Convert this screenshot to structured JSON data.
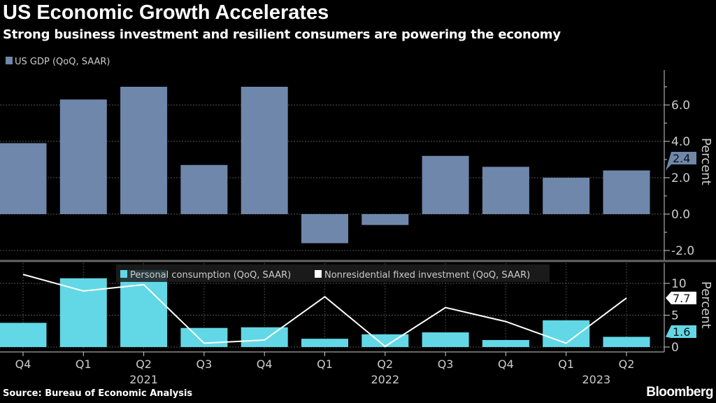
{
  "header": {
    "title": "US Economic Growth Accelerates",
    "subtitle": "Strong business investment and resilient consumers are powering the economy"
  },
  "footer": {
    "source": "Source: Bureau of Economic Analysis",
    "logo": "Bloomberg"
  },
  "colors": {
    "gdp": "#6f87aa",
    "consumption": "#62d8e6",
    "investment": "#ffffff",
    "background": "#000000"
  },
  "chart_data": [
    {
      "type": "bar",
      "legend": [
        "US GDP (QoQ, SAAR)"
      ],
      "legend_placement": "top-left",
      "categories": [
        "Q4 2020",
        "Q1 2021",
        "Q2 2021",
        "Q3 2021",
        "Q4 2021",
        "Q1 2022",
        "Q2 2022",
        "Q3 2022",
        "Q4 2022",
        "Q1 2023",
        "Q2 2023"
      ],
      "series": [
        {
          "name": "US GDP (QoQ, SAAR)",
          "values": [
            3.9,
            6.3,
            7.0,
            2.7,
            7.0,
            -1.6,
            -0.6,
            3.2,
            2.6,
            2.0,
            2.4
          ]
        }
      ],
      "ylabel": "Percent",
      "yticks": [
        "-2.0",
        "0.0",
        "2.0",
        "4.0",
        "6.0"
      ],
      "ylim": [
        -2.5,
        7.2
      ],
      "last_value_label": "2.4",
      "grid": true
    },
    {
      "type": "bar+line",
      "legend": [
        "Personal consumption (QoQ, SAAR)",
        "Nonresidential fixed investment (QoQ, SAAR)"
      ],
      "legend_placement": "top-center",
      "categories": [
        "Q4 2020",
        "Q1 2021",
        "Q2 2021",
        "Q3 2021",
        "Q4 2021",
        "Q1 2022",
        "Q2 2022",
        "Q3 2022",
        "Q4 2022",
        "Q1 2023",
        "Q2 2023"
      ],
      "series": [
        {
          "name": "Personal consumption (QoQ, SAAR)",
          "type": "bar",
          "values": [
            3.8,
            10.8,
            12.1,
            3.0,
            3.1,
            1.3,
            2.0,
            2.3,
            1.1,
            4.2,
            1.6
          ]
        },
        {
          "name": "Nonresidential fixed investment (QoQ, SAAR)",
          "type": "line",
          "values": [
            11.4,
            8.8,
            9.8,
            0.6,
            1.1,
            7.9,
            0.1,
            6.2,
            4.0,
            0.6,
            7.7
          ]
        }
      ],
      "ylabel": "Percent",
      "yticks": [
        "0",
        "5",
        "10"
      ],
      "ylim": [
        -0.5,
        12.5
      ],
      "last_value_labels": [
        "7.7",
        "1.6"
      ],
      "grid": true
    }
  ],
  "xaxis": {
    "quarter_labels": [
      "Q4",
      "Q1",
      "Q2",
      "Q3",
      "Q4",
      "Q1",
      "Q2",
      "Q3",
      "Q4",
      "Q1",
      "Q2"
    ],
    "year_labels": [
      "2021",
      "2022",
      "2023"
    ]
  }
}
